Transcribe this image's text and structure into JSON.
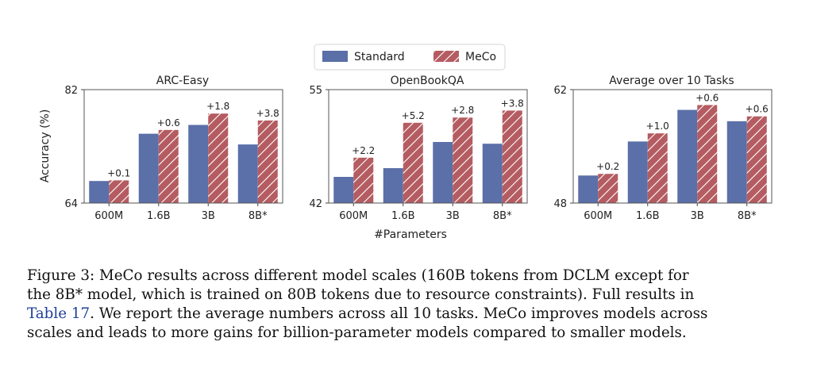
{
  "figure": {
    "legend": [
      {
        "label": "Standard",
        "color": "#5b6fa8"
      },
      {
        "label": "MeCo",
        "color": "#b45c61",
        "hatched": true
      }
    ],
    "legend_placement": "top-center",
    "shared_xlabel": "#Parameters",
    "shared_ylabel": "Accuracy (%)"
  },
  "chart_data": [
    {
      "type": "bar",
      "title": "ARC-Easy",
      "categories": [
        "600M",
        "1.6B",
        "3B",
        "8B*"
      ],
      "ylim": [
        64,
        82
      ],
      "yticks": [
        "64",
        "82"
      ],
      "ylabel": "Accuracy (%)",
      "xlabel": "",
      "grid": false,
      "series": [
        {
          "name": "Standard",
          "values": [
            67.5,
            75.0,
            76.4,
            73.3
          ]
        },
        {
          "name": "MeCo",
          "values": [
            67.6,
            75.6,
            78.2,
            77.1
          ]
        }
      ],
      "annotations": [
        "+0.1",
        "+0.6",
        "+1.8",
        "+3.8"
      ]
    },
    {
      "type": "bar",
      "title": "OpenBookQA",
      "categories": [
        "600M",
        "1.6B",
        "3B",
        "8B*"
      ],
      "ylim": [
        42,
        55
      ],
      "yticks": [
        "42",
        "55"
      ],
      "ylabel": "",
      "xlabel": "#Parameters",
      "grid": false,
      "series": [
        {
          "name": "Standard",
          "values": [
            45.0,
            46.0,
            49.0,
            48.8
          ]
        },
        {
          "name": "MeCo",
          "values": [
            47.2,
            51.2,
            51.8,
            52.6
          ]
        }
      ],
      "annotations": [
        "+2.2",
        "+5.2",
        "+2.8",
        "+3.8"
      ]
    },
    {
      "type": "bar",
      "title": "Average over 10 Tasks",
      "categories": [
        "600M",
        "1.6B",
        "3B",
        "8B*"
      ],
      "ylim": [
        48,
        62
      ],
      "yticks": [
        "48",
        "62"
      ],
      "ylabel": "",
      "xlabel": "",
      "grid": false,
      "series": [
        {
          "name": "Standard",
          "values": [
            51.4,
            55.6,
            59.5,
            58.1
          ]
        },
        {
          "name": "MeCo",
          "values": [
            51.6,
            56.6,
            60.1,
            58.7
          ]
        }
      ],
      "annotations": [
        "+0.2",
        "+1.0",
        "+0.6",
        "+0.6"
      ]
    }
  ],
  "caption": {
    "line1": "Figure 3: MeCo results across different model scales (160B tokens from DCLM except for",
    "line2": "the 8B* model, which is trained on 80B tokens due to resource constraints). Full results in",
    "line3_ref": "Table 17",
    "line3_rest": ". We report the average numbers across all 10 tasks. MeCo improves models across",
    "line4": "scales and leads to more gains for billion-parameter models compared to smaller models."
  }
}
